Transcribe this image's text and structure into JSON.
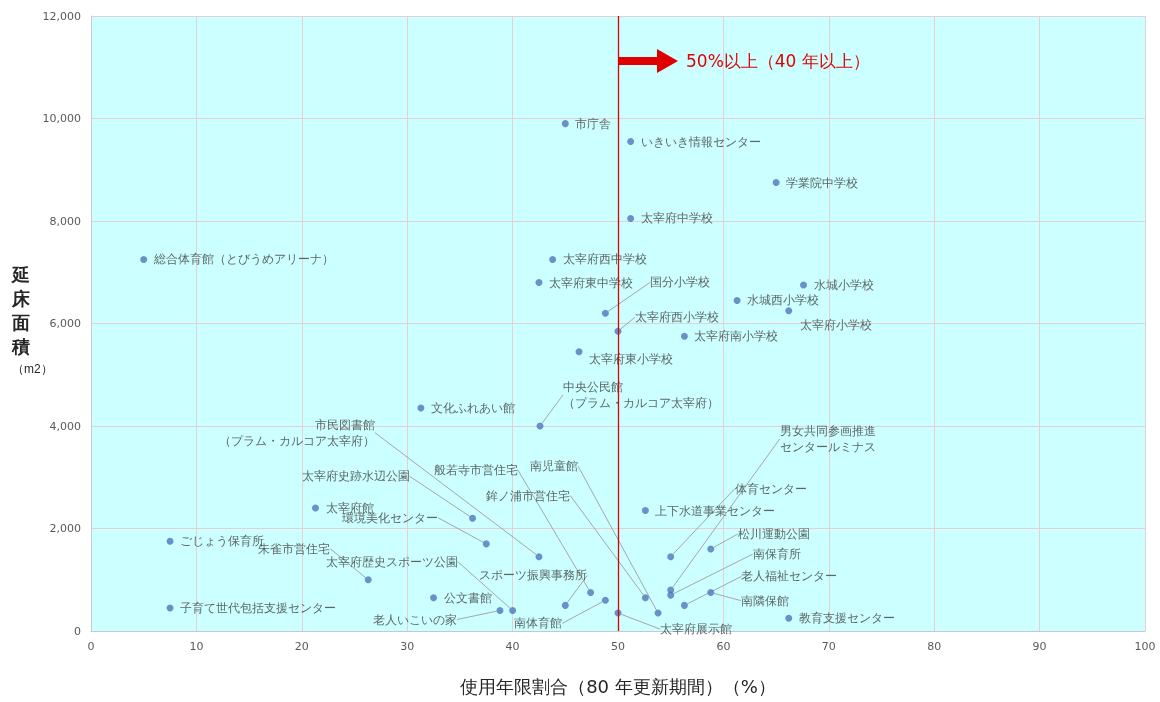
{
  "chart_data": {
    "type": "scatter",
    "xlabel": "使用年限割合（80 年更新期間）（%）",
    "ylabel": "延床面積（m2）",
    "x": [
      45.0,
      51.2,
      65.0,
      51.2,
      5.0,
      43.8,
      42.5,
      48.8,
      67.6,
      61.3,
      66.2,
      50.0,
      56.3,
      46.3,
      31.3,
      42.6,
      42.5,
      36.2,
      37.5,
      21.3,
      7.5,
      26.3,
      40.0,
      32.5,
      38.8,
      7.5,
      47.4,
      45.0,
      48.8,
      50.0,
      53.8,
      52.6,
      52.6,
      55.0,
      55.0,
      55.0,
      58.8,
      56.3,
      58.8,
      66.2
    ],
    "series": [
      {
        "color": "#4f76bb",
        "values": [
          9900,
          9550,
          8750,
          8050,
          7250,
          7250,
          6800,
          6200,
          6750,
          6450,
          6250,
          5850,
          5750,
          5450,
          4350,
          4000,
          1450,
          2200,
          1700,
          2400,
          1750,
          1000,
          400,
          650,
          400,
          450,
          750,
          500,
          600,
          350,
          350,
          650,
          2350,
          1450,
          800,
          700,
          1600,
          500,
          750,
          250
        ]
      }
    ],
    "annotations": [
      {
        "text": "市庁舎",
        "x": 45.0,
        "y": 9900
      },
      {
        "text": "いきいき情報センター",
        "x": 51.2,
        "y": 9550
      },
      {
        "text": "学業院中学校",
        "x": 65.0,
        "y": 8750
      },
      {
        "text": "太宰府中学校",
        "x": 51.2,
        "y": 8050
      },
      {
        "text": "総合体育館（とびうめアリーナ）",
        "x": 5.0,
        "y": 7250
      },
      {
        "text": "太宰府西中学校",
        "x": 43.8,
        "y": 7250
      },
      {
        "text": "太宰府東中学校",
        "x": 42.5,
        "y": 6800
      },
      {
        "text": "国分小学校",
        "x": 48.8,
        "y": 6200
      },
      {
        "text": "水城小学校",
        "x": 67.6,
        "y": 6750
      },
      {
        "text": "水城西小学校",
        "x": 61.3,
        "y": 6450
      },
      {
        "text": "太宰府小学校",
        "x": 66.2,
        "y": 6250
      },
      {
        "text": "太宰府西小学校",
        "x": 50.0,
        "y": 5850
      },
      {
        "text": "太宰府南小学校",
        "x": 56.3,
        "y": 5750
      },
      {
        "text": "太宰府東小学校",
        "x": 46.3,
        "y": 5450
      },
      {
        "text": "文化ふれあい館",
        "x": 31.3,
        "y": 4350
      },
      {
        "text": "中央公民館（プラム・カルコア太宰府）",
        "x": 42.6,
        "y": 4000
      },
      {
        "text": "市民図書館（プラム・カルコア太宰府）",
        "x": 42.5,
        "y": 1450
      },
      {
        "text": "太宰府史跡水辺公園",
        "x": 36.2,
        "y": 2200
      },
      {
        "text": "環境美化センター",
        "x": 37.5,
        "y": 1700
      },
      {
        "text": "太宰府館",
        "x": 21.3,
        "y": 2400
      },
      {
        "text": "ごじょう保育所",
        "x": 7.5,
        "y": 1750
      },
      {
        "text": "朱雀市営住宅",
        "x": 26.3,
        "y": 1000
      },
      {
        "text": "太宰府歴史スポーツ公園",
        "x": 40.0,
        "y": 400
      },
      {
        "text": "公文書館",
        "x": 32.5,
        "y": 650
      },
      {
        "text": "老人いこいの家",
        "x": 38.8,
        "y": 400
      },
      {
        "text": "子育て世代包括支援センター",
        "x": 7.5,
        "y": 450
      },
      {
        "text": "般若寺市営住宅",
        "x": 47.4,
        "y": 750
      },
      {
        "text": "スポーツ振興事務所",
        "x": 45.0,
        "y": 500
      },
      {
        "text": "南体育館",
        "x": 48.8,
        "y": 600
      },
      {
        "text": "太宰府展示館",
        "x": 50.0,
        "y": 350
      },
      {
        "text": "南児童館",
        "x": 53.8,
        "y": 350
      },
      {
        "text": "鉾ノ浦市営住宅",
        "x": 52.6,
        "y": 650
      },
      {
        "text": "上下水道事業センター",
        "x": 52.6,
        "y": 2350
      },
      {
        "text": "体育センター",
        "x": 55.0,
        "y": 1450
      },
      {
        "text": "男女共同参画推進センタールミナス",
        "x": 55.0,
        "y": 800
      },
      {
        "text": "南保育所",
        "x": 55.0,
        "y": 700
      },
      {
        "text": "松川運動公園",
        "x": 58.8,
        "y": 1600
      },
      {
        "text": "老人福祉センター",
        "x": 56.3,
        "y": 500
      },
      {
        "text": "南隣保館",
        "x": 58.8,
        "y": 750
      },
      {
        "text": "教育支援センター",
        "x": 66.2,
        "y": 250
      }
    ],
    "xlim": [
      0,
      100
    ],
    "xticks": [
      0,
      10,
      20,
      30,
      40,
      50,
      60,
      70,
      80,
      90,
      100
    ],
    "ylim": [
      0,
      12000
    ],
    "yticks": [
      0,
      {
        "value": 2000,
        "label": "2,000"
      },
      {
        "value": 4000,
        "label": "4,000"
      },
      {
        "value": 6000,
        "label": "6,000"
      },
      {
        "value": 8000,
        "label": "8,000"
      },
      {
        "value": 10000,
        "label": "10,000"
      },
      {
        "value": 12000,
        "label": "12,000"
      }
    ],
    "ref_lines": [
      {
        "axis": "x",
        "value": 50,
        "label": "50%以上（40 年以上）",
        "color": "#e00000"
      }
    ],
    "grid": true,
    "marker": "circle"
  }
}
